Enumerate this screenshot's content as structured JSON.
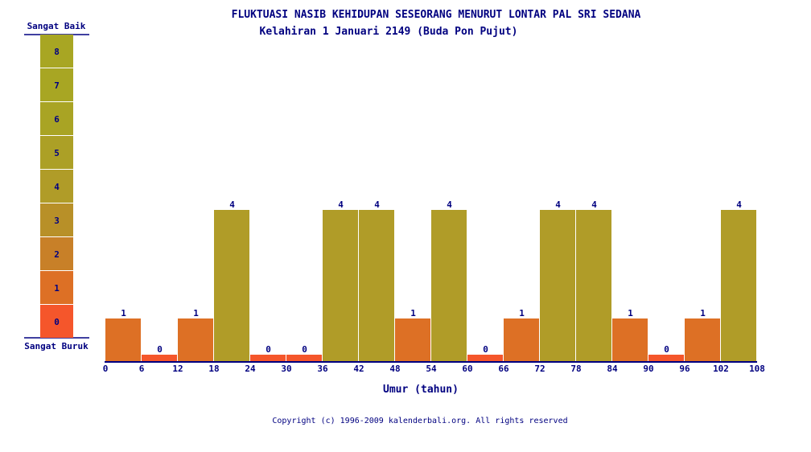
{
  "chart_data": {
    "type": "bar",
    "title": "FLUKTUASI NASIB KEHIDUPAN SESEORANG MENURUT LONTAR PAL SRI SEDANA",
    "subtitle": "Kelahiran 1 Januari 2149 (Buda Pon Pujut)",
    "xlabel": "Umur (tahun)",
    "ylabel": "",
    "x_ticks": [
      "0",
      "6",
      "12",
      "18",
      "24",
      "30",
      "36",
      "42",
      "48",
      "54",
      "60",
      "66",
      "72",
      "78",
      "84",
      "90",
      "96",
      "102",
      "108"
    ],
    "values": [
      1,
      0,
      1,
      4,
      0,
      0,
      4,
      4,
      1,
      4,
      0,
      1,
      4,
      4,
      1,
      0,
      1,
      4
    ],
    "ylim": [
      0,
      8
    ],
    "grid": false,
    "scale": {
      "top_label": "Sangat Baik",
      "bottom_label": "Sangat Buruk",
      "levels": [
        "0",
        "1",
        "2",
        "3",
        "4",
        "5",
        "6",
        "7",
        "8"
      ]
    },
    "level_colors": [
      "#F5562B",
      "#DD7025",
      "#C88028",
      "#B89028",
      "#B09C28",
      "#ACA026",
      "#A9A424",
      "#A8A623",
      "#A8A623"
    ]
  },
  "footer": {
    "copyright": "Copyright (c) 1996-2009 kalenderbali.org. All rights reserved"
  }
}
